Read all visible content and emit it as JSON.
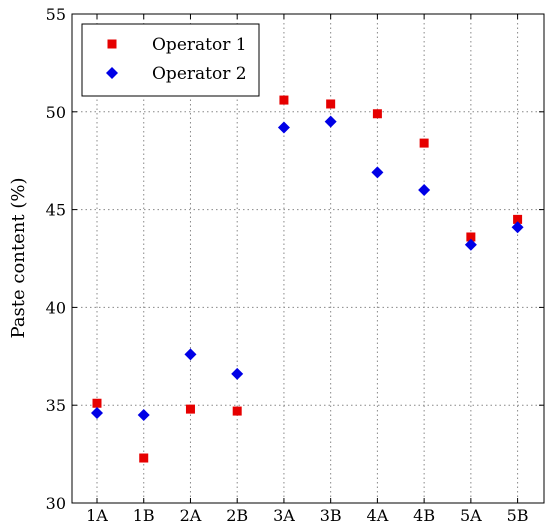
{
  "chart_data": {
    "type": "scatter",
    "title": "",
    "xlabel": "",
    "ylabel": "Paste content (%)",
    "categories": [
      "1A",
      "1B",
      "2A",
      "2B",
      "3A",
      "3B",
      "4A",
      "4B",
      "5A",
      "5B"
    ],
    "ylim": [
      30,
      55
    ],
    "yticks": [
      30,
      35,
      40,
      45,
      50,
      55
    ],
    "grid": true,
    "legend_position": "top-left",
    "series": [
      {
        "name": "Operator 1",
        "marker": "square",
        "color": "#e60000",
        "values": [
          35.1,
          32.3,
          34.8,
          34.7,
          50.6,
          50.4,
          49.9,
          48.4,
          43.6,
          44.5
        ]
      },
      {
        "name": "Operator 2",
        "marker": "diamond",
        "color": "#0000e6",
        "values": [
          34.6,
          34.5,
          37.6,
          36.6,
          49.2,
          49.5,
          46.9,
          46.0,
          43.2,
          44.1
        ]
      }
    ]
  }
}
